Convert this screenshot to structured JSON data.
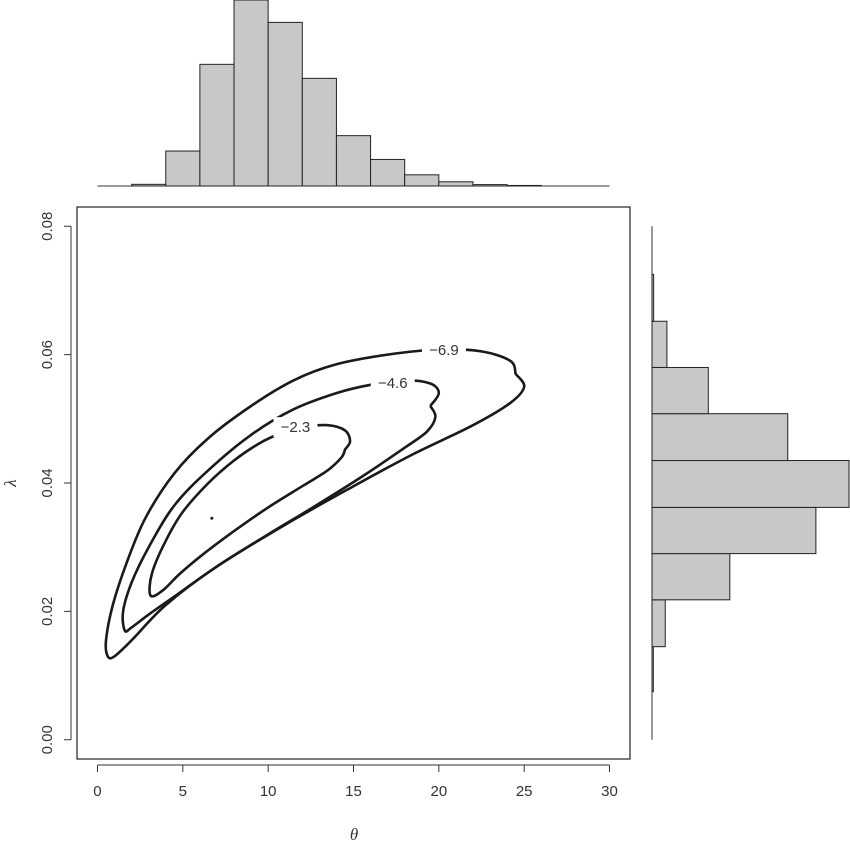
{
  "chart_data": [
    {
      "type": "contour",
      "title": "",
      "xlabel": "θ",
      "ylabel": "λ",
      "xlim": [
        -1.2,
        31.2
      ],
      "ylim": [
        -0.003,
        0.083
      ],
      "x_ticks": [
        0,
        5,
        10,
        15,
        20,
        25,
        30
      ],
      "y_ticks": [
        0.0,
        0.02,
        0.04,
        0.06,
        0.08
      ],
      "y_tick_labels": [
        "0.00",
        "0.02",
        "0.04",
        "0.06",
        "0.08"
      ],
      "grid": false,
      "mode_point": {
        "x": 6.7,
        "y": 0.0345
      },
      "contours": [
        {
          "level": "−2.3",
          "label_at": {
            "x": 11.6,
            "y": 0.0487
          },
          "points": [
            [
              14.5,
              0.0452
            ],
            [
              14.3,
              0.044
            ],
            [
              13.5,
              0.042
            ],
            [
              12.0,
              0.0395
            ],
            [
              10.0,
              0.0362
            ],
            [
              8.0,
              0.0325
            ],
            [
              6.0,
              0.0285
            ],
            [
              4.8,
              0.0258
            ],
            [
              3.8,
              0.0232
            ],
            [
              3.1,
              0.0225
            ],
            [
              3.2,
              0.026
            ],
            [
              4.0,
              0.031
            ],
            [
              5.0,
              0.0355
            ],
            [
              6.5,
              0.04
            ],
            [
              8.0,
              0.0435
            ],
            [
              9.5,
              0.0462
            ],
            [
              10.8,
              0.0478
            ],
            [
              12.0,
              0.0487
            ],
            [
              13.5,
              0.049
            ],
            [
              14.5,
              0.0482
            ],
            [
              14.8,
              0.0465
            ],
            [
              14.5,
              0.0452
            ]
          ]
        },
        {
          "level": "−4.6",
          "label_at": {
            "x": 17.3,
            "y": 0.0556
          },
          "points": [
            [
              19.5,
              0.052
            ],
            [
              19.8,
              0.0503
            ],
            [
              19.3,
              0.048
            ],
            [
              18.0,
              0.0455
            ],
            [
              15.5,
              0.041
            ],
            [
              12.5,
              0.036
            ],
            [
              10.0,
              0.032
            ],
            [
              7.0,
              0.027
            ],
            [
              4.5,
              0.0223
            ],
            [
              3.0,
              0.0195
            ],
            [
              2.0,
              0.0175
            ],
            [
              1.6,
              0.017
            ],
            [
              1.5,
              0.02
            ],
            [
              2.0,
              0.0245
            ],
            [
              3.0,
              0.03
            ],
            [
              4.5,
              0.0365
            ],
            [
              6.5,
              0.042
            ],
            [
              9.0,
              0.0475
            ],
            [
              11.5,
              0.0515
            ],
            [
              14.0,
              0.054
            ],
            [
              16.0,
              0.0553
            ],
            [
              18.0,
              0.056
            ],
            [
              19.5,
              0.0555
            ],
            [
              20.0,
              0.054
            ],
            [
              19.5,
              0.052
            ]
          ]
        },
        {
          "level": "−6.9",
          "label_at": {
            "x": 20.3,
            "y": 0.0607
          },
          "points": [
            [
              24.5,
              0.057
            ],
            [
              25.0,
              0.055
            ],
            [
              24.2,
              0.0525
            ],
            [
              22.0,
              0.049
            ],
            [
              18.5,
              0.0445
            ],
            [
              15.0,
              0.0395
            ],
            [
              11.0,
              0.0335
            ],
            [
              7.0,
              0.027
            ],
            [
              4.0,
              0.021
            ],
            [
              2.0,
              0.0155
            ],
            [
              1.0,
              0.013
            ],
            [
              0.6,
              0.013
            ],
            [
              0.5,
              0.0155
            ],
            [
              0.9,
              0.021
            ],
            [
              1.7,
              0.0275
            ],
            [
              2.8,
              0.0345
            ],
            [
              4.5,
              0.0415
            ],
            [
              6.5,
              0.047
            ],
            [
              9.0,
              0.052
            ],
            [
              11.5,
              0.056
            ],
            [
              14.0,
              0.0585
            ],
            [
              17.0,
              0.06
            ],
            [
              20.0,
              0.0608
            ],
            [
              22.5,
              0.0605
            ],
            [
              24.2,
              0.059
            ],
            [
              24.5,
              0.057
            ]
          ]
        }
      ]
    },
    {
      "type": "histogram",
      "orientation": "vertical",
      "axis": "θ",
      "bin_edges": [
        2,
        4,
        6,
        8,
        10,
        12,
        14,
        16,
        18,
        20,
        22,
        24,
        26
      ],
      "counts": [
        0.6,
        12.5,
        43.5,
        66.5,
        58.5,
        38.5,
        18.0,
        9.5,
        4.0,
        1.5,
        0.5,
        0.2
      ],
      "count_max": 66.5,
      "axis_range": [
        0,
        30
      ]
    },
    {
      "type": "histogram",
      "orientation": "horizontal",
      "axis": "λ",
      "bin_edges": [
        0.0075,
        0.0145,
        0.0218,
        0.029,
        0.0362,
        0.0435,
        0.0508,
        0.058,
        0.0652,
        0.0725
      ],
      "counts": [
        0.4,
        4.0,
        23.5,
        49.5,
        59.5,
        41.0,
        17.0,
        4.5,
        0.5
      ],
      "count_max": 59.5,
      "axis_range": [
        0,
        0.08
      ]
    }
  ]
}
